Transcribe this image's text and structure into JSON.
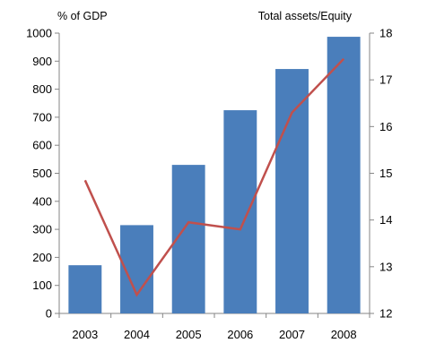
{
  "chart_data": {
    "type": "bar",
    "categories": [
      "2003",
      "2004",
      "2005",
      "2006",
      "2007",
      "2008"
    ],
    "series": [
      {
        "kind": "bar",
        "axis": "left",
        "values": [
          172,
          315,
          530,
          725,
          872,
          987
        ],
        "color": "#4a7ebb"
      },
      {
        "kind": "line",
        "axis": "right",
        "values": [
          14.85,
          12.4,
          13.95,
          13.8,
          16.3,
          17.45
        ],
        "color": "#c0504d"
      }
    ],
    "y_left": {
      "label": "% of GDP",
      "range": [
        0,
        1000
      ],
      "ticks": [
        0,
        100,
        200,
        300,
        400,
        500,
        600,
        700,
        800,
        900,
        1000
      ]
    },
    "y_right": {
      "label": "Total assets/Equity",
      "range": [
        12,
        18
      ],
      "ticks": [
        12,
        13,
        14,
        15,
        16,
        17,
        18
      ]
    },
    "grid": false,
    "legend": "none"
  }
}
